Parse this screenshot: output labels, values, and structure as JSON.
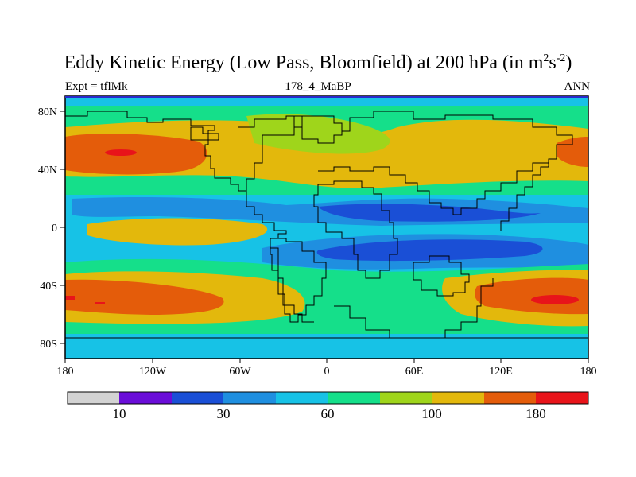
{
  "chart_data": {
    "type": "map",
    "title": "Eddy Kinetic Energy (Low Pass, Bloomfield) at 200 hPa (in m",
    "title_unit_sup1": "2",
    "title_unit_mid": "s",
    "title_unit_sup2": "-2",
    "title_close": ")",
    "subtitle_left": "Expt = tflMk",
    "subtitle_center": "178_4_MaBP",
    "subtitle_right": "ANN",
    "x_ticks": [
      "180",
      "120W",
      "60W",
      "0",
      "60E",
      "120E",
      "180"
    ],
    "y_ticks": [
      "80N",
      "40N",
      "0",
      "40S",
      "80S"
    ],
    "colorbar": {
      "colors": [
        "#d3d3d3",
        "#6a0dd8",
        "#1a4fd6",
        "#1f8fe0",
        "#17c2e6",
        "#15df8a",
        "#9fd51b",
        "#e3b80c",
        "#e45c0a",
        "#e8141a"
      ],
      "labels": [
        "10",
        "30",
        "60",
        "100",
        "180"
      ]
    }
  }
}
